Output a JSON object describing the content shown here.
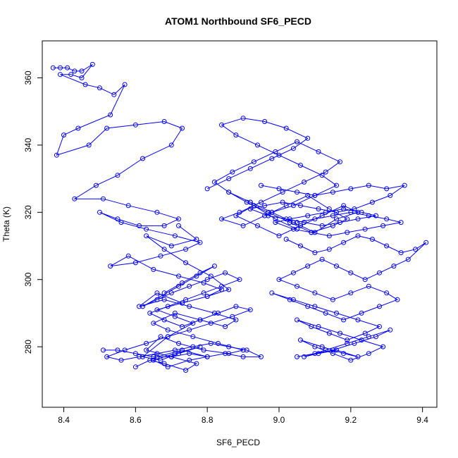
{
  "chart_data": {
    "type": "line",
    "title": "ATOM1 Northbound SF6_PECD",
    "xlabel": "SF6_PECD",
    "ylabel": "Theta (K)",
    "xlim": [
      8.34,
      9.44
    ],
    "ylim": [
      262,
      371
    ],
    "xticks": [
      8.4,
      8.6,
      8.8,
      9.0,
      9.2,
      9.4
    ],
    "xtick_labels": [
      "8.4",
      "8.6",
      "8.8",
      "9.0",
      "9.2",
      "9.4"
    ],
    "yticks": [
      280,
      300,
      320,
      340,
      360
    ],
    "ytick_labels": [
      "280",
      "300",
      "320",
      "340",
      "360"
    ],
    "grid": false,
    "legend": "none",
    "color": "#0000ff",
    "marker": "open-circle",
    "series": [
      {
        "x": [
          8.37,
          8.39,
          8.41,
          8.43,
          8.45,
          8.48,
          8.45,
          8.42,
          8.39,
          8.46,
          8.5,
          8.54,
          8.57,
          8.53,
          8.44,
          8.4,
          8.38,
          8.47,
          8.52,
          8.6,
          8.68,
          8.73,
          8.7,
          8.62,
          8.55,
          8.49,
          8.43,
          8.51,
          8.58,
          8.66,
          8.72,
          8.68,
          8.61,
          8.55,
          8.5,
          8.56,
          8.63,
          8.71,
          8.78,
          8.74,
          8.67,
          8.6,
          8.53,
          8.58,
          8.65,
          8.72,
          8.79,
          8.84,
          8.8,
          8.73,
          8.66,
          8.61,
          8.68,
          8.75,
          8.82,
          8.88,
          8.85,
          8.78,
          8.71,
          8.65,
          8.69,
          8.76,
          8.83,
          8.9,
          8.86,
          8.79,
          8.72,
          8.67,
          8.63,
          8.7,
          8.77,
          8.74,
          8.68,
          8.64,
          8.6,
          8.66,
          8.73,
          8.8,
          8.75,
          8.69,
          8.65,
          8.71,
          8.78,
          8.72,
          8.67,
          8.62,
          8.69,
          8.76,
          8.71,
          8.66,
          8.73,
          8.8,
          8.86,
          8.81,
          8.74,
          8.68,
          8.63,
          8.7,
          8.77,
          8.72
        ],
        "y": [
          363,
          363,
          363,
          362,
          362,
          364,
          360,
          361,
          361,
          358,
          357,
          355,
          358,
          349,
          345,
          343,
          337,
          340,
          345,
          346,
          347,
          345,
          340,
          336,
          331,
          328,
          324,
          324,
          322,
          320,
          318,
          316,
          316,
          318,
          320,
          317,
          315,
          313,
          311,
          309,
          307,
          305,
          304,
          307,
          303,
          301,
          299,
          297,
          295,
          293,
          296,
          292,
          294,
          292,
          290,
          288,
          286,
          288,
          290,
          287,
          285,
          283,
          281,
          279,
          278,
          279,
          281,
          283,
          279,
          277,
          275,
          273,
          275,
          276,
          274,
          277,
          279,
          277,
          276,
          274,
          276,
          278,
          280,
          278,
          276,
          277,
          283,
          287,
          289,
          291,
          293,
          295,
          297,
          301,
          305,
          309,
          313,
          310,
          312,
          316
        ]
      },
      {
        "x": [
          8.8,
          8.86,
          8.92,
          8.98,
          9.04,
          9.08,
          9.02,
          8.96,
          8.9,
          8.84,
          8.88,
          8.94,
          9.0,
          9.06,
          9.12,
          9.16,
          9.1,
          9.04,
          8.98,
          8.92,
          8.86,
          8.82,
          8.87,
          8.93,
          8.99,
          9.05,
          9.11,
          9.17,
          9.13,
          9.07,
          9.01,
          8.95,
          8.89,
          8.84,
          8.9,
          8.96,
          9.02,
          9.08,
          9.14,
          9.19,
          9.15,
          9.09,
          9.03,
          8.97,
          8.91,
          8.86,
          8.92,
          8.98,
          9.04,
          9.1,
          9.16,
          9.22,
          9.18,
          9.12,
          9.06,
          9.0,
          8.94,
          8.88,
          8.93,
          8.99,
          9.05
        ],
        "y": [
          327,
          330,
          333,
          336,
          339,
          342,
          345,
          347,
          348,
          346,
          343,
          340,
          337,
          334,
          331,
          328,
          325,
          322,
          320,
          323,
          326,
          329,
          332,
          335,
          338,
          341,
          338,
          335,
          332,
          329,
          326,
          323,
          320,
          318,
          316,
          319,
          322,
          325,
          321,
          318,
          316,
          314,
          317,
          320,
          323,
          326,
          323,
          320,
          317,
          314,
          318,
          320,
          322,
          319,
          316,
          313,
          316,
          319,
          322,
          318,
          315
        ]
      },
      {
        "x": [
          9.02,
          9.06,
          9.1,
          9.14,
          9.18,
          9.22,
          9.26,
          9.3,
          9.34,
          9.38,
          9.41,
          9.36,
          9.32,
          9.28,
          9.24,
          9.2,
          9.16,
          9.12,
          9.08,
          9.04,
          9.0,
          9.05,
          9.1,
          9.15,
          9.2,
          9.25,
          9.3,
          9.33,
          9.28,
          9.23,
          9.18,
          9.13,
          9.08,
          9.03,
          8.98,
          9.04,
          9.1,
          9.16,
          9.22,
          9.28,
          9.24,
          9.19,
          9.14,
          9.09,
          9.05,
          9.11,
          9.17,
          9.23,
          9.29,
          9.25,
          9.2,
          9.15,
          9.1,
          9.06,
          9.12,
          9.18,
          9.22,
          9.16,
          9.11,
          9.07,
          9.13,
          9.19,
          9.25,
          9.31,
          9.27,
          9.21,
          9.15,
          9.1,
          9.05
        ],
        "y": [
          312,
          310,
          308,
          309,
          311,
          313,
          312,
          310,
          308,
          309,
          311,
          306,
          304,
          302,
          300,
          302,
          304,
          306,
          304,
          302,
          300,
          298,
          296,
          294,
          296,
          298,
          296,
          294,
          292,
          290,
          288,
          290,
          292,
          294,
          296,
          294,
          292,
          290,
          288,
          286,
          284,
          282,
          284,
          286,
          288,
          286,
          284,
          282,
          280,
          278,
          276,
          278,
          280,
          282,
          280,
          278,
          277,
          279,
          278,
          277,
          279,
          281,
          283,
          285,
          283,
          281,
          279,
          278,
          277
        ]
      },
      {
        "x": [
          8.51,
          8.55,
          8.6,
          8.65,
          8.7,
          8.75,
          8.8,
          8.85,
          8.9,
          8.95,
          8.91,
          8.86,
          8.81,
          8.76,
          8.71,
          8.66,
          8.61,
          8.56,
          8.52,
          8.57,
          8.63,
          8.69,
          8.75,
          8.81,
          8.87,
          8.92,
          8.88,
          8.83,
          8.78,
          8.73,
          8.68,
          8.64,
          8.69,
          8.74,
          8.79,
          8.84,
          8.89,
          8.85,
          8.8,
          8.75,
          8.7,
          8.66,
          8.62,
          8.67,
          8.72,
          8.77,
          8.82,
          8.78,
          8.73,
          8.68
        ],
        "y": [
          279,
          279,
          278,
          277,
          277,
          278,
          277,
          278,
          277,
          277,
          279,
          280,
          281,
          280,
          279,
          278,
          277,
          276,
          277,
          279,
          281,
          283,
          285,
          287,
          289,
          291,
          292,
          290,
          288,
          286,
          288,
          290,
          292,
          294,
          296,
          298,
          300,
          302,
          300,
          298,
          296,
          294,
          292,
          295,
          298,
          301,
          304,
          302,
          299,
          296
        ]
      },
      {
        "x": [
          8.95,
          9.0,
          9.05,
          9.1,
          9.15,
          9.2,
          9.25,
          9.3,
          9.35,
          9.31,
          9.26,
          9.21,
          9.16,
          9.11,
          9.06,
          9.01,
          8.96,
          8.92,
          8.97,
          9.02,
          9.07,
          9.12,
          9.17,
          9.22,
          9.27,
          9.23,
          9.18,
          9.13,
          9.08,
          9.03,
          8.99,
          9.04,
          9.09,
          9.14,
          9.19,
          9.24,
          9.29,
          9.34,
          9.3,
          9.25,
          9.2,
          9.15,
          9.1,
          9.05
        ],
        "y": [
          328,
          327,
          326,
          325,
          326,
          327,
          328,
          327,
          328,
          325,
          323,
          321,
          320,
          321,
          322,
          323,
          322,
          321,
          319,
          318,
          317,
          316,
          317,
          318,
          319,
          320,
          321,
          320,
          319,
          318,
          317,
          315,
          314,
          313,
          314,
          315,
          316,
          317,
          318,
          319,
          320,
          319,
          318,
          317
        ]
      }
    ]
  }
}
